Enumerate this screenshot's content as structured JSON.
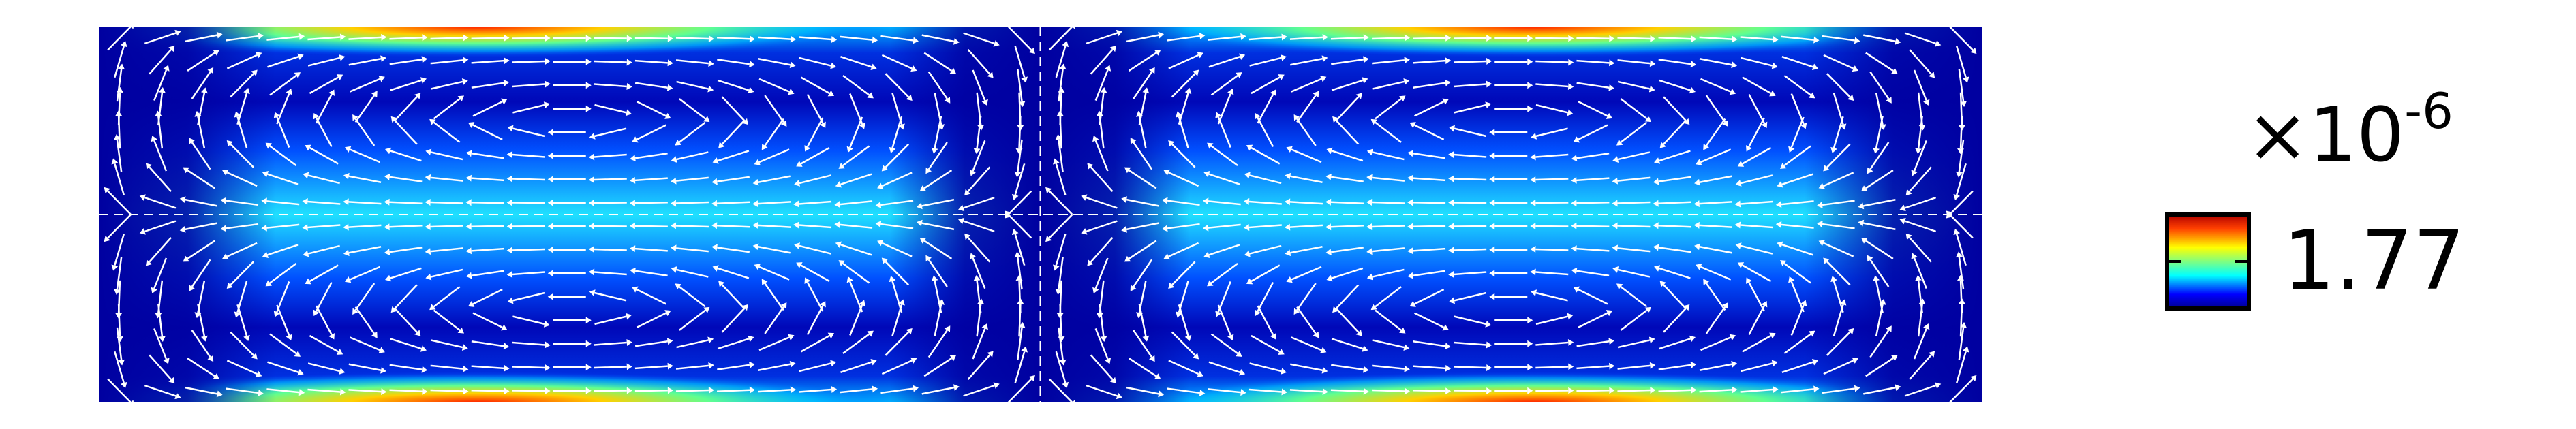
{
  "colorbar": {
    "multiplier": "×10",
    "exponent": "-6",
    "max_label": "1.77"
  }
}
